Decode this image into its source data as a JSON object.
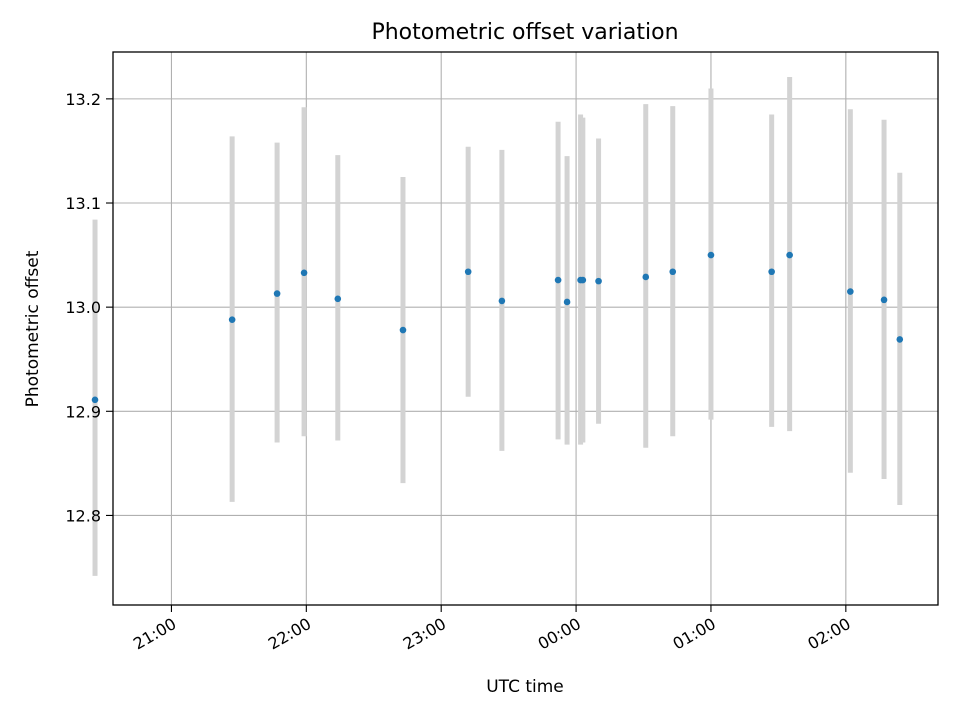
{
  "chart_data": {
    "type": "scatter",
    "title": "Photometric offset variation",
    "xlabel": "UTC time",
    "ylabel": "Photometric offset",
    "x_axis": "time",
    "xlim": [
      "20:34",
      "02:41"
    ],
    "ylim": [
      12.714,
      13.245
    ],
    "x_ticks": [
      "21:00",
      "22:00",
      "23:00",
      "00:00",
      "01:00",
      "02:00"
    ],
    "y_ticks": [
      12.8,
      12.9,
      13.0,
      13.1,
      13.2
    ],
    "grid": true,
    "legend": false,
    "marker_color": "#1f77b4",
    "errorbar_color": "#d3d3d3",
    "points": [
      {
        "x": "20:26",
        "y": 12.911,
        "y_low": 12.742,
        "y_high": 13.084
      },
      {
        "x": "21:27",
        "y": 12.988,
        "y_low": 12.813,
        "y_high": 13.164
      },
      {
        "x": "21:47",
        "y": 13.013,
        "y_low": 12.87,
        "y_high": 13.158
      },
      {
        "x": "21:59",
        "y": 13.033,
        "y_low": 12.876,
        "y_high": 13.192
      },
      {
        "x": "22:14",
        "y": 13.008,
        "y_low": 12.872,
        "y_high": 13.146
      },
      {
        "x": "22:43",
        "y": 12.978,
        "y_low": 12.831,
        "y_high": 13.125
      },
      {
        "x": "23:12",
        "y": 13.034,
        "y_low": 12.914,
        "y_high": 13.154
      },
      {
        "x": "23:27",
        "y": 13.006,
        "y_low": 12.862,
        "y_high": 13.151
      },
      {
        "x": "23:52",
        "y": 13.026,
        "y_low": 12.873,
        "y_high": 13.178
      },
      {
        "x": "23:56",
        "y": 13.005,
        "y_low": 12.868,
        "y_high": 13.145
      },
      {
        "x": "00:02",
        "y": 13.026,
        "y_low": 12.868,
        "y_high": 13.185
      },
      {
        "x": "00:03",
        "y": 13.026,
        "y_low": 12.87,
        "y_high": 13.182
      },
      {
        "x": "00:10",
        "y": 13.025,
        "y_low": 12.888,
        "y_high": 13.162
      },
      {
        "x": "00:31",
        "y": 13.029,
        "y_low": 12.865,
        "y_high": 13.195
      },
      {
        "x": "00:43",
        "y": 13.034,
        "y_low": 12.876,
        "y_high": 13.193
      },
      {
        "x": "01:00",
        "y": 13.05,
        "y_low": 12.892,
        "y_high": 13.21
      },
      {
        "x": "01:27",
        "y": 13.034,
        "y_low": 12.885,
        "y_high": 13.185
      },
      {
        "x": "01:35",
        "y": 13.05,
        "y_low": 12.881,
        "y_high": 13.221
      },
      {
        "x": "02:02",
        "y": 13.015,
        "y_low": 12.841,
        "y_high": 13.19
      },
      {
        "x": "02:17",
        "y": 13.007,
        "y_low": 12.835,
        "y_high": 13.18
      },
      {
        "x": "02:24",
        "y": 12.969,
        "y_low": 12.81,
        "y_high": 13.129
      }
    ]
  }
}
